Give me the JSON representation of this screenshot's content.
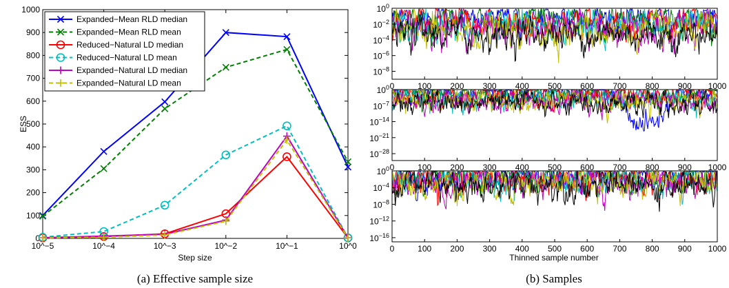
{
  "chart_data": [
    {
      "type": "line",
      "xlabel": "Step size",
      "ylabel": "ESS",
      "caption": "(a) Effective sample size",
      "x_tick_labels": [
        "10^−5",
        "10^−4",
        "10^−3",
        "10^−2",
        "10^−1",
        "10^0"
      ],
      "x": [
        -5,
        -4,
        -3,
        -2,
        -1,
        0
      ],
      "xscale": "log10",
      "ylim": [
        0,
        1000
      ],
      "y_ticks": [
        0,
        100,
        200,
        300,
        400,
        500,
        600,
        700,
        800,
        900,
        1000
      ],
      "grid": false,
      "legend_position": "top-left",
      "series": [
        {
          "name": "Expanded−Mean RLD median",
          "color": "#0000ff",
          "linestyle": "solid",
          "marker": "x",
          "values": [
            100,
            380,
            597,
            900,
            882,
            312
          ]
        },
        {
          "name": "Expanded−Mean RLD mean",
          "color": "#008000",
          "linestyle": "dashed",
          "marker": "x",
          "values": [
            97,
            305,
            567,
            748,
            826,
            335
          ]
        },
        {
          "name": "Reduced−Natural LD median",
          "color": "#ff0000",
          "linestyle": "solid",
          "marker": "o",
          "values": [
            2,
            8,
            20,
            108,
            357,
            2
          ]
        },
        {
          "name": "Reduced−Natural LD mean",
          "color": "#00bfbf",
          "linestyle": "dashed",
          "marker": "o",
          "values": [
            5,
            30,
            145,
            365,
            492,
            3
          ]
        },
        {
          "name": "Expanded−Natural LD median",
          "color": "#bf00bf",
          "linestyle": "solid",
          "marker": "+",
          "values": [
            3,
            10,
            18,
            80,
            447,
            3
          ]
        },
        {
          "name": "Expanded−Natural LD mean",
          "color": "#bfbf00",
          "linestyle": "dashed",
          "marker": "+",
          "values": [
            2,
            5,
            15,
            75,
            430,
            2
          ]
        }
      ]
    },
    {
      "type": "line",
      "caption": "(b) Samples",
      "xlabel": "Thinned sample number",
      "xlim": [
        0,
        1000
      ],
      "x_ticks": [
        0,
        100,
        200,
        300,
        400,
        500,
        600,
        700,
        800,
        900,
        1000
      ],
      "yscale": "log10",
      "series_colors": [
        "#0000ff",
        "#008000",
        "#ff0000",
        "#00bfbf",
        "#bf00bf",
        "#bfbf00",
        "#000000"
      ],
      "panels": [
        {
          "y_tick_exponents": [
            0,
            -2,
            -4,
            -6,
            -8
          ],
          "ylim_exp": [
            -9,
            0
          ]
        },
        {
          "y_tick_exponents": [
            0,
            -7,
            -14,
            -21,
            -28
          ],
          "ylim_exp": [
            -31,
            0
          ]
        },
        {
          "y_tick_exponents": [
            0,
            -4,
            -8,
            -12,
            -16
          ],
          "ylim_exp": [
            -17,
            0
          ]
        }
      ]
    }
  ]
}
